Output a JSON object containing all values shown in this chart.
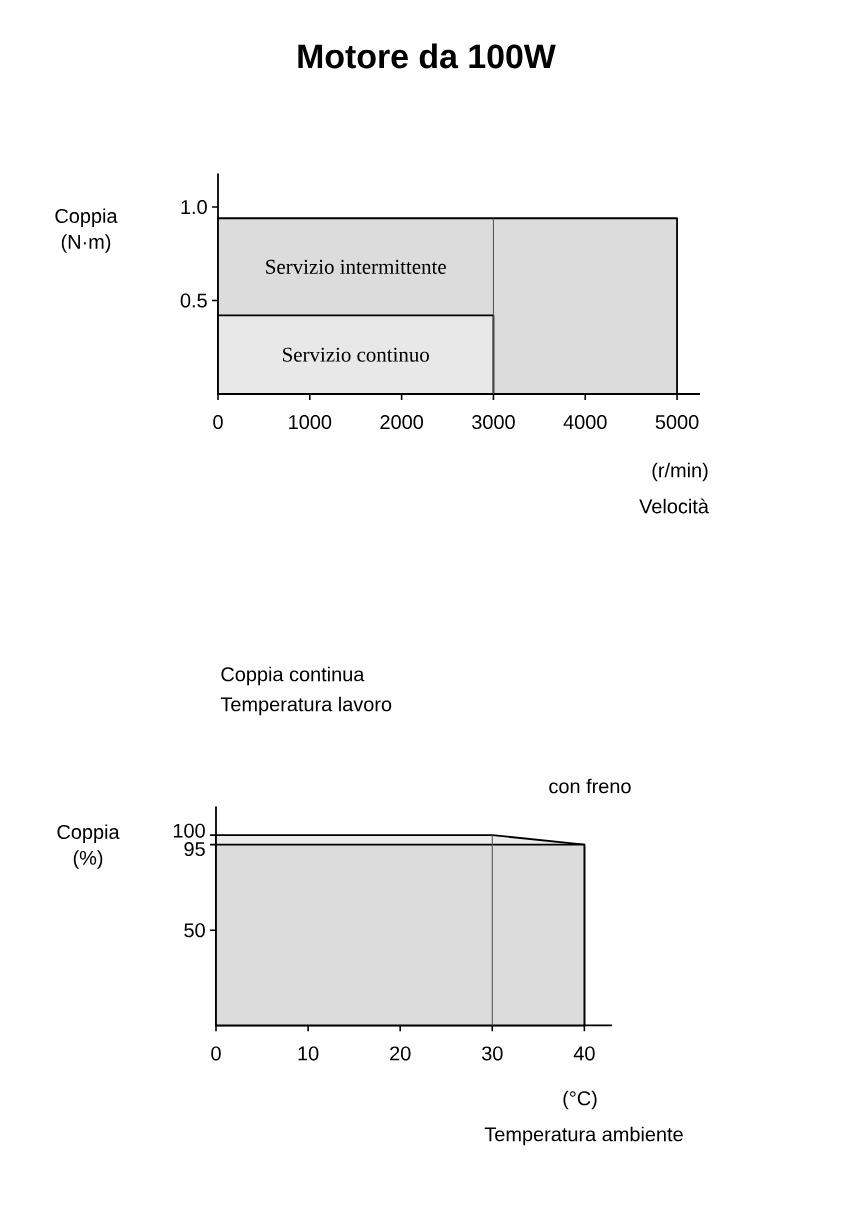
{
  "chart_data": [
    {
      "type": "area",
      "title": "Motore da 100W",
      "ylabel": "Coppia (N·m)",
      "xlabel": "Velocità",
      "annotations": [
        "(r/min)"
      ],
      "xlim": [
        0,
        5250
      ],
      "ylim": [
        0,
        1.18
      ],
      "xticks": [
        0,
        1000,
        2000,
        3000,
        4000,
        5000
      ],
      "yticks": [
        0.5,
        {
          "value": 1,
          "label": "1.0"
        }
      ],
      "series": [
        {
          "name": "Servizio intermittente",
          "color": "#dcdcdc",
          "x": [
            0,
            5000
          ],
          "values": [
            0.94,
            0.94
          ]
        },
        {
          "name": "Servizio continuo",
          "color": "#e8e8e8",
          "x": [
            0,
            3000
          ],
          "values": [
            0.42,
            0.42
          ]
        }
      ],
      "ref_lines": [
        {
          "axis": "x",
          "value": 3000
        }
      ]
    },
    {
      "type": "area",
      "title": "Coppia continua",
      "subtitle": "Temperatura lavoro",
      "ylabel": "Coppia (%)",
      "xlabel": "Temperatura ambiente",
      "annotations": [
        "(°C)",
        "con freno"
      ],
      "xlim": [
        0,
        43
      ],
      "ylim": [
        0,
        115
      ],
      "xticks": [
        0,
        10,
        20,
        30,
        40
      ],
      "yticks": [
        50,
        95,
        100
      ],
      "series": [
        {
          "color": "#ebebeb",
          "x": [
            0,
            30,
            40
          ],
          "values": [
            100,
            100,
            95
          ]
        },
        {
          "color": "#dcdcdc",
          "x": [
            0,
            40
          ],
          "values": [
            95,
            95
          ]
        }
      ],
      "ref_lines": [
        {
          "axis": "x",
          "value": 30
        }
      ]
    }
  ]
}
